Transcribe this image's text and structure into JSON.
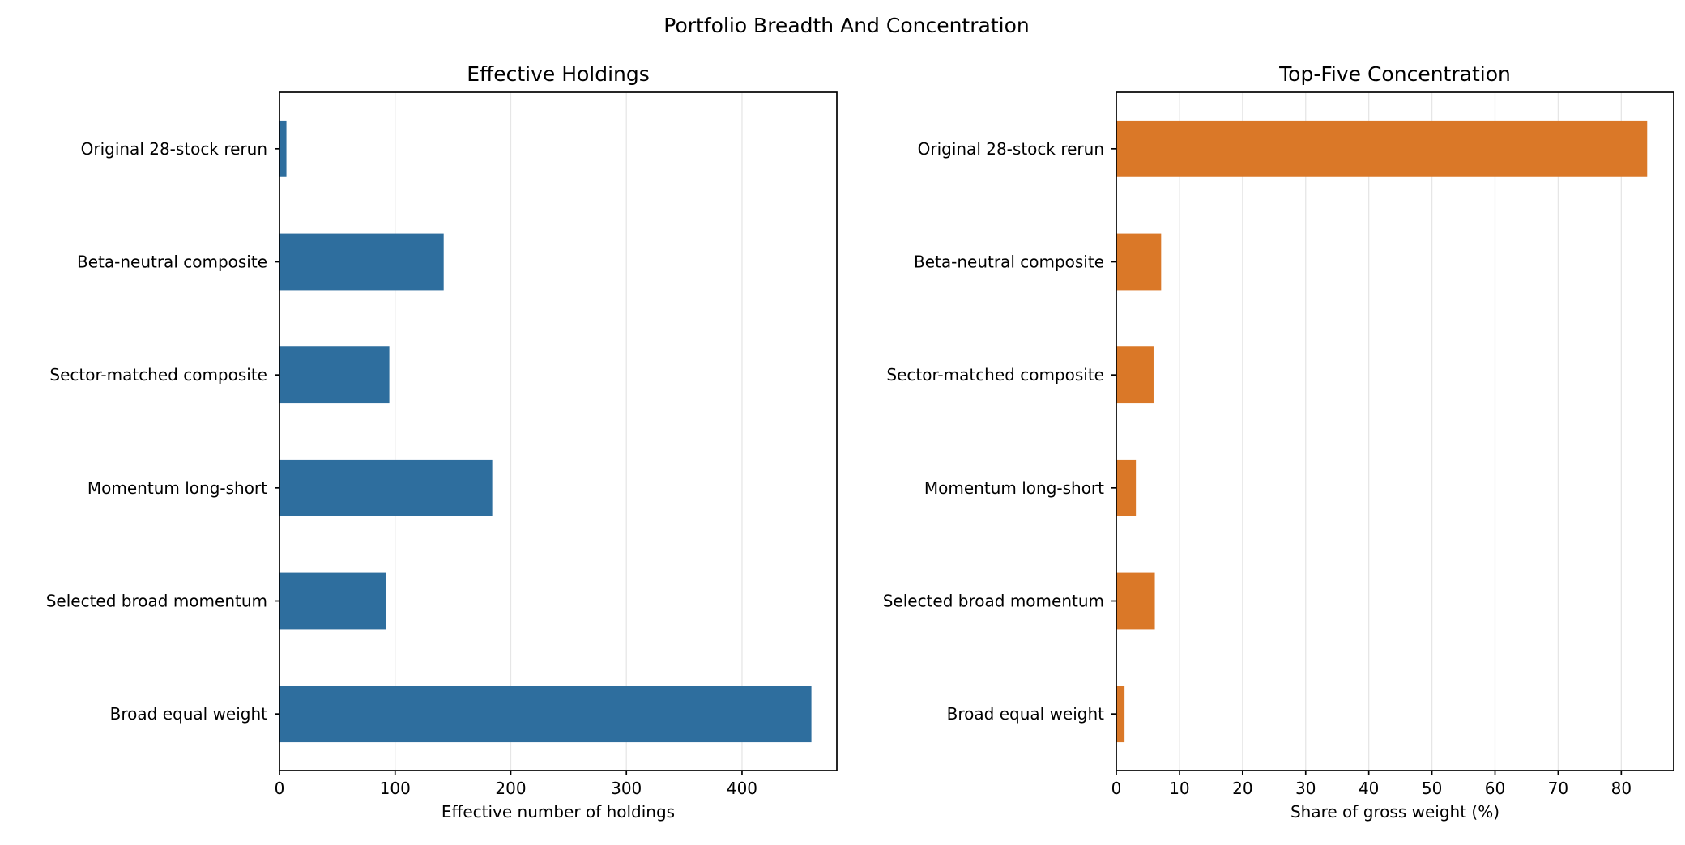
{
  "figure": {
    "title": "Portfolio Breadth And Concentration"
  },
  "chart_data": [
    {
      "type": "bar",
      "orientation": "horizontal",
      "title": "Effective Holdings",
      "xlabel": "Effective number of holdings",
      "ylabel": "",
      "categories": [
        "Original 28-stock rerun",
        "Beta-neutral composite",
        "Sector-matched composite",
        "Momentum long-short",
        "Selected broad momentum",
        "Broad equal weight"
      ],
      "values": [
        6,
        142,
        95,
        184,
        92,
        460
      ],
      "xlim": [
        0,
        482
      ],
      "xticks": [
        0,
        100,
        200,
        300,
        400
      ],
      "grid": "vertical",
      "color": "#2e6e9e"
    },
    {
      "type": "bar",
      "orientation": "horizontal",
      "title": "Top-Five Concentration",
      "xlabel": "Share of gross weight (%)",
      "ylabel": "",
      "categories": [
        "Original 28-stock rerun",
        "Beta-neutral composite",
        "Sector-matched composite",
        "Momentum long-short",
        "Selected broad momentum",
        "Broad equal weight"
      ],
      "values": [
        84.1,
        7.1,
        5.9,
        3.1,
        6.1,
        1.3
      ],
      "xlim": [
        0,
        88.3
      ],
      "xticks": [
        0,
        10,
        20,
        30,
        40,
        50,
        60,
        70,
        80
      ],
      "grid": "vertical",
      "color": "#da7828"
    }
  ]
}
